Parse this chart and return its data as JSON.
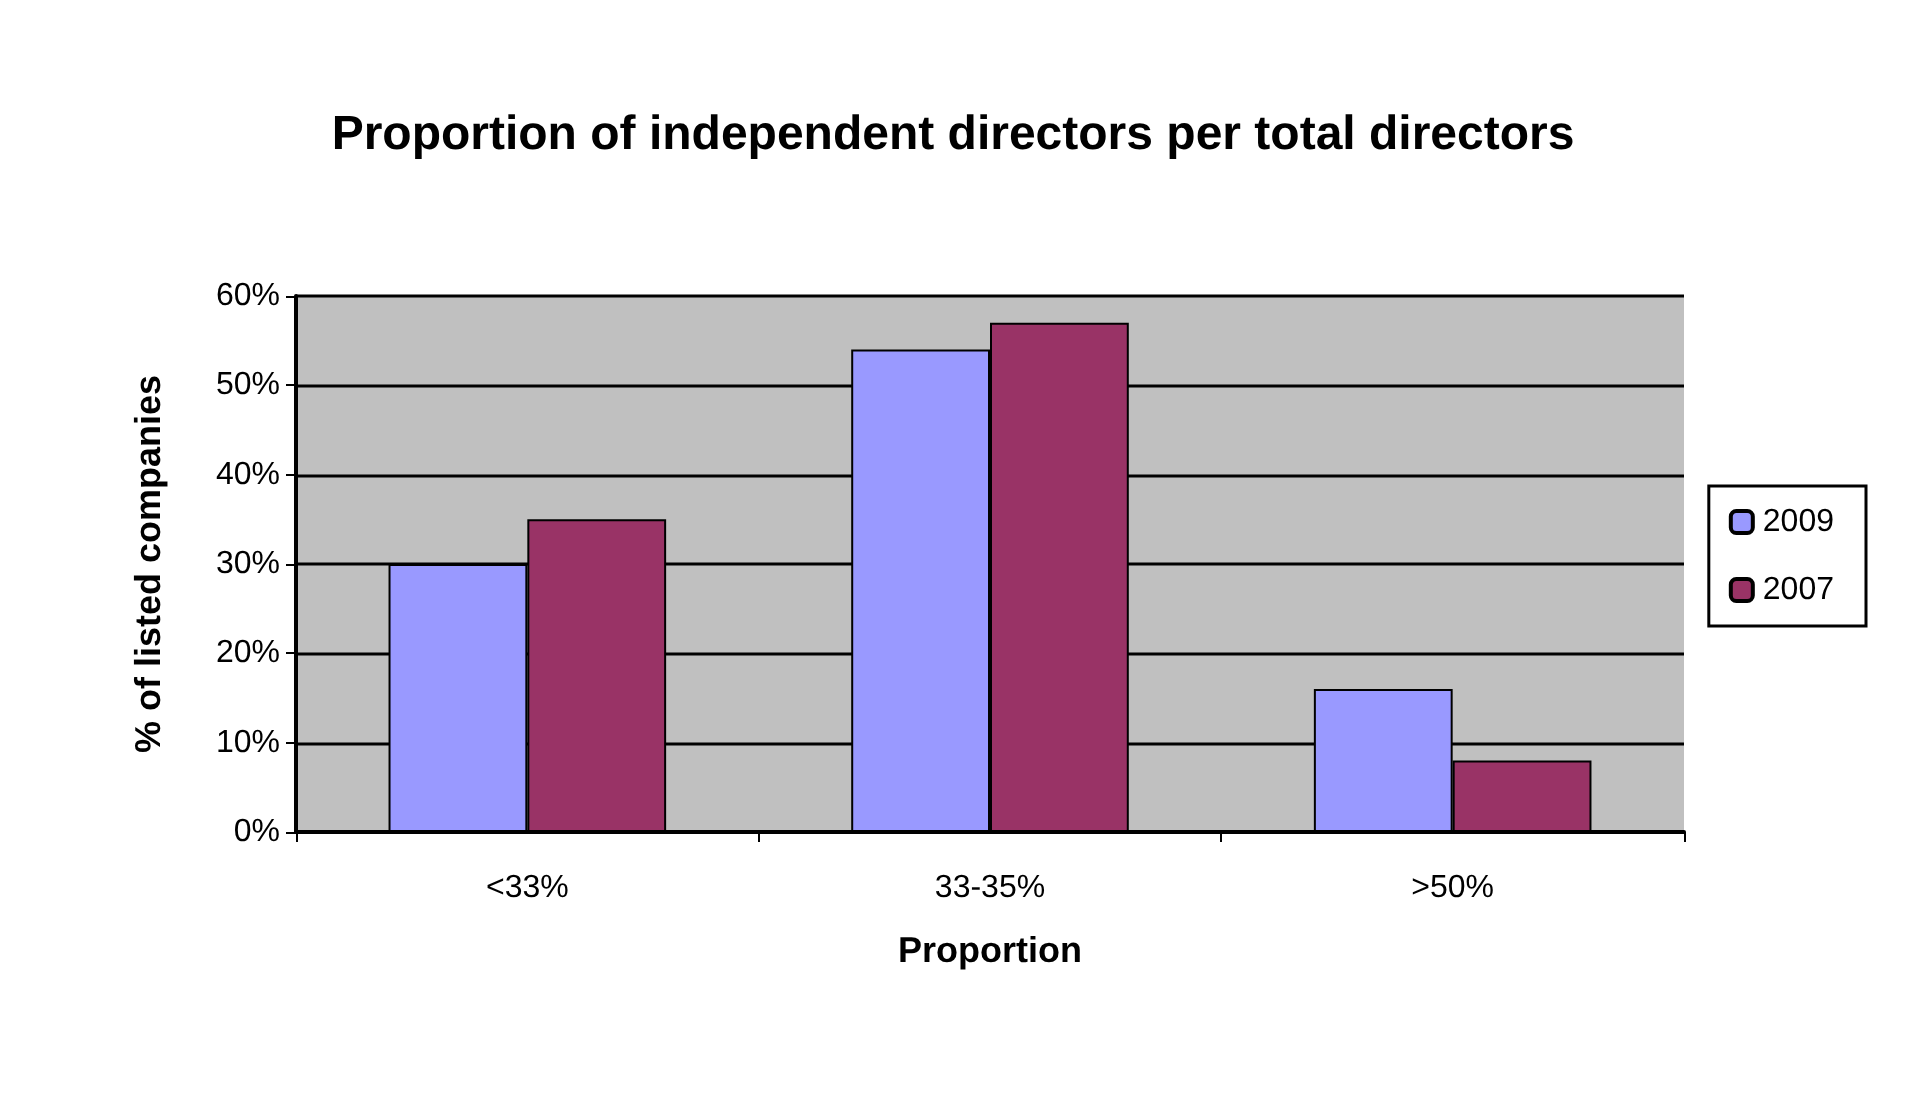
{
  "chart_data": {
    "type": "bar",
    "title": "Proportion of independent directors per total directors",
    "xlabel": "Proportion",
    "ylabel": "% of listed companies",
    "categories": [
      "<33%",
      "33-35%",
      ">50%"
    ],
    "series": [
      {
        "name": "2009",
        "color": "#9999ff",
        "values": [
          30,
          54,
          16
        ]
      },
      {
        "name": "2007",
        "color": "#993366",
        "values": [
          35,
          57,
          8
        ]
      }
    ],
    "ylim": [
      0,
      60
    ],
    "yticks": [
      {
        "value": 0,
        "label": "0%"
      },
      {
        "value": 10,
        "label": "10%"
      },
      {
        "value": 20,
        "label": "20%"
      },
      {
        "value": 30,
        "label": "30%"
      },
      {
        "value": 40,
        "label": "40%"
      },
      {
        "value": 50,
        "label": "50%"
      },
      {
        "value": 60,
        "label": "60%"
      }
    ],
    "grid": "y",
    "legend": "right"
  }
}
